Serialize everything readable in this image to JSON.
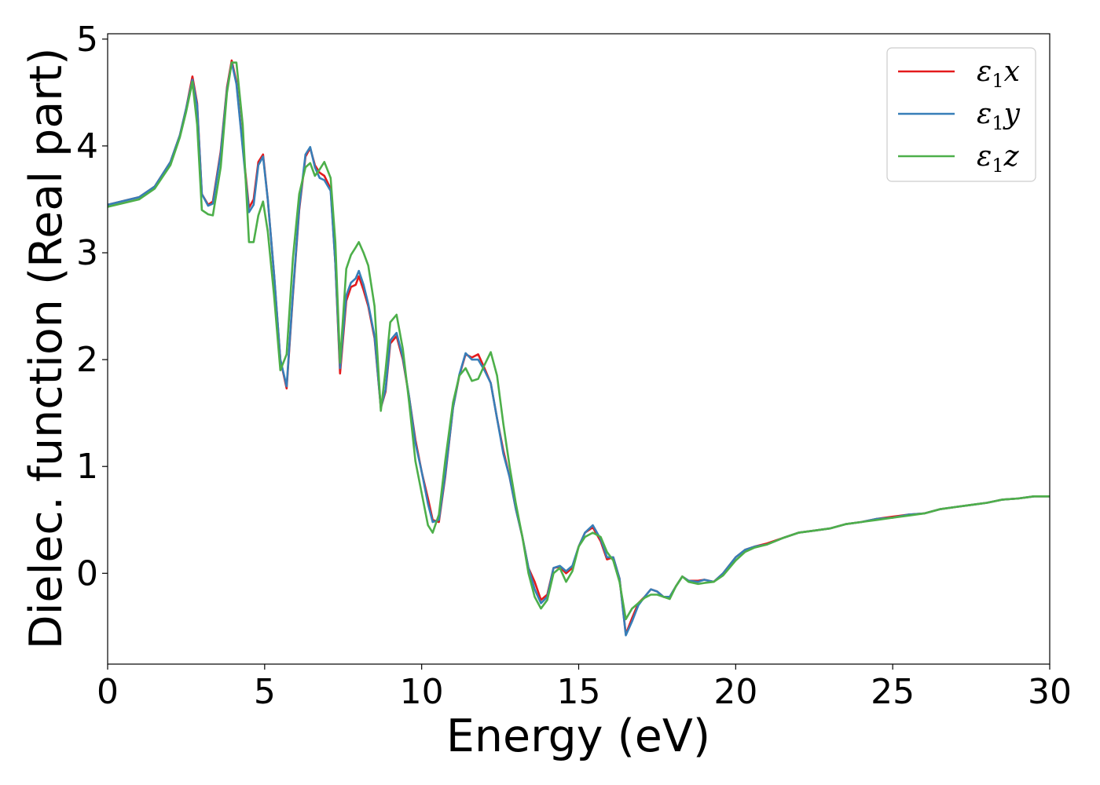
{
  "chart_data": {
    "type": "line",
    "xlabel": "Energy (eV)",
    "ylabel": "Dielec. function (Real part)",
    "xlim": [
      0,
      30
    ],
    "ylim": [
      -0.85,
      5.05
    ],
    "xticks": [
      0,
      5,
      10,
      15,
      20,
      25,
      30
    ],
    "yticks": [
      0,
      1,
      2,
      3,
      4,
      5
    ],
    "grid": false,
    "legend_position": "top-right",
    "series": [
      {
        "name": "ε1x",
        "legend": {
          "main": "ε",
          "sub": "1",
          "suffix": "x"
        },
        "color": "#e41a1c",
        "x": [
          0,
          1,
          1.5,
          2,
          2.3,
          2.5,
          2.7,
          2.85,
          3.0,
          3.2,
          3.35,
          3.6,
          3.8,
          3.95,
          4.1,
          4.3,
          4.5,
          4.65,
          4.8,
          4.95,
          5.1,
          5.3,
          5.5,
          5.7,
          5.9,
          6.1,
          6.3,
          6.45,
          6.6,
          6.75,
          6.9,
          7.1,
          7.25,
          7.4,
          7.6,
          7.75,
          7.9,
          8.0,
          8.15,
          8.3,
          8.5,
          8.7,
          8.85,
          9.0,
          9.2,
          9.4,
          9.6,
          9.8,
          10.0,
          10.2,
          10.35,
          10.55,
          10.75,
          11.0,
          11.2,
          11.4,
          11.6,
          11.8,
          12.0,
          12.2,
          12.4,
          12.6,
          12.8,
          13.0,
          13.2,
          13.4,
          13.6,
          13.8,
          14.0,
          14.2,
          14.4,
          14.6,
          14.8,
          15.0,
          15.2,
          15.45,
          15.7,
          15.9,
          16.1,
          16.3,
          16.5,
          16.7,
          16.9,
          17.1,
          17.3,
          17.5,
          17.7,
          17.9,
          18.1,
          18.3,
          18.5,
          18.8,
          19.0,
          19.3,
          19.6,
          20.0,
          20.3,
          20.6,
          21.0,
          21.5,
          22.0,
          22.5,
          23.0,
          23.5,
          24.0,
          24.5,
          25.0,
          25.5,
          26.0,
          26.5,
          27.0,
          27.5,
          28.0,
          28.5,
          29.0,
          29.5,
          30.0
        ],
        "y": [
          3.45,
          3.52,
          3.62,
          3.85,
          4.1,
          4.35,
          4.65,
          4.4,
          3.55,
          3.45,
          3.48,
          3.95,
          4.55,
          4.8,
          4.6,
          4.0,
          3.42,
          3.5,
          3.85,
          3.92,
          3.5,
          2.8,
          2.0,
          1.73,
          2.6,
          3.4,
          3.9,
          3.98,
          3.82,
          3.75,
          3.72,
          3.6,
          2.9,
          1.87,
          2.55,
          2.68,
          2.7,
          2.78,
          2.65,
          2.5,
          2.2,
          1.55,
          1.7,
          2.15,
          2.22,
          2.0,
          1.65,
          1.25,
          0.95,
          0.7,
          0.5,
          0.48,
          0.9,
          1.55,
          1.85,
          2.05,
          2.02,
          2.05,
          1.92,
          1.78,
          1.45,
          1.15,
          0.9,
          0.6,
          0.35,
          0.05,
          -0.08,
          -0.25,
          -0.2,
          0.05,
          0.06,
          0.0,
          0.05,
          0.25,
          0.38,
          0.43,
          0.3,
          0.13,
          0.15,
          -0.05,
          -0.57,
          -0.42,
          -0.28,
          -0.22,
          -0.15,
          -0.17,
          -0.22,
          -0.22,
          -0.12,
          -0.03,
          -0.07,
          -0.07,
          -0.06,
          -0.08,
          0.0,
          0.15,
          0.22,
          0.25,
          0.28,
          0.33,
          0.38,
          0.4,
          0.42,
          0.46,
          0.48,
          0.51,
          0.53,
          0.55,
          0.56,
          0.6,
          0.62,
          0.64,
          0.66,
          0.69,
          0.7,
          0.72,
          0.72
        ]
      },
      {
        "name": "ε1y",
        "legend": {
          "main": "ε",
          "sub": "1",
          "suffix": "y"
        },
        "color": "#377eb8",
        "x": [
          0,
          1,
          1.5,
          2,
          2.3,
          2.5,
          2.7,
          2.85,
          3.0,
          3.2,
          3.35,
          3.6,
          3.8,
          3.95,
          4.1,
          4.3,
          4.5,
          4.65,
          4.8,
          4.95,
          5.1,
          5.3,
          5.5,
          5.7,
          5.9,
          6.1,
          6.3,
          6.45,
          6.6,
          6.75,
          6.9,
          7.1,
          7.25,
          7.4,
          7.6,
          7.75,
          7.9,
          8.0,
          8.15,
          8.3,
          8.5,
          8.7,
          8.85,
          9.0,
          9.2,
          9.4,
          9.6,
          9.8,
          10.0,
          10.2,
          10.35,
          10.55,
          10.75,
          11.0,
          11.2,
          11.4,
          11.6,
          11.8,
          12.0,
          12.2,
          12.4,
          12.6,
          12.8,
          13.0,
          13.2,
          13.4,
          13.6,
          13.8,
          14.0,
          14.2,
          14.4,
          14.6,
          14.8,
          15.0,
          15.2,
          15.45,
          15.7,
          15.9,
          16.1,
          16.3,
          16.5,
          16.7,
          16.9,
          17.1,
          17.3,
          17.5,
          17.7,
          17.9,
          18.1,
          18.3,
          18.5,
          18.8,
          19.0,
          19.3,
          19.6,
          20.0,
          20.3,
          20.6,
          21.0,
          21.5,
          22.0,
          22.5,
          23.0,
          23.5,
          24.0,
          24.5,
          25.0,
          25.5,
          26.0,
          26.5,
          27.0,
          27.5,
          28.0,
          28.5,
          29.0,
          29.5,
          30.0
        ],
        "y": [
          3.45,
          3.52,
          3.62,
          3.85,
          4.1,
          4.35,
          4.62,
          4.38,
          3.55,
          3.44,
          3.46,
          3.93,
          4.53,
          4.78,
          4.58,
          3.98,
          3.38,
          3.45,
          3.82,
          3.9,
          3.5,
          2.8,
          2.0,
          1.75,
          2.62,
          3.42,
          3.92,
          3.99,
          3.8,
          3.7,
          3.68,
          3.58,
          2.9,
          1.92,
          2.6,
          2.72,
          2.76,
          2.83,
          2.7,
          2.52,
          2.22,
          1.55,
          1.72,
          2.18,
          2.25,
          2.02,
          1.65,
          1.22,
          0.95,
          0.65,
          0.48,
          0.5,
          0.92,
          1.55,
          1.86,
          2.06,
          2.0,
          2.0,
          1.9,
          1.78,
          1.45,
          1.12,
          0.9,
          0.6,
          0.35,
          0.05,
          -0.15,
          -0.28,
          -0.22,
          0.05,
          0.07,
          0.02,
          0.07,
          0.25,
          0.38,
          0.45,
          0.32,
          0.15,
          0.15,
          -0.05,
          -0.58,
          -0.45,
          -0.3,
          -0.22,
          -0.15,
          -0.17,
          -0.22,
          -0.22,
          -0.12,
          -0.03,
          -0.07,
          -0.08,
          -0.06,
          -0.08,
          0.0,
          0.15,
          0.22,
          0.25,
          0.27,
          0.33,
          0.38,
          0.4,
          0.42,
          0.46,
          0.48,
          0.51,
          0.52,
          0.55,
          0.56,
          0.6,
          0.62,
          0.64,
          0.66,
          0.69,
          0.7,
          0.72,
          0.72
        ]
      },
      {
        "name": "ε1z",
        "legend": {
          "main": "ε",
          "sub": "1",
          "suffix": "z"
        },
        "color": "#4daf4a",
        "x": [
          0,
          1,
          1.5,
          2,
          2.3,
          2.5,
          2.7,
          2.85,
          3.0,
          3.2,
          3.35,
          3.6,
          3.8,
          3.95,
          4.1,
          4.3,
          4.5,
          4.65,
          4.8,
          4.95,
          5.1,
          5.3,
          5.5,
          5.7,
          5.9,
          6.1,
          6.3,
          6.45,
          6.6,
          6.75,
          6.9,
          7.1,
          7.25,
          7.4,
          7.6,
          7.75,
          7.9,
          8.0,
          8.15,
          8.3,
          8.5,
          8.7,
          8.85,
          9.0,
          9.2,
          9.4,
          9.6,
          9.8,
          10.0,
          10.2,
          10.35,
          10.55,
          10.75,
          11.0,
          11.2,
          11.4,
          11.6,
          11.8,
          12.0,
          12.2,
          12.4,
          12.6,
          12.8,
          13.0,
          13.2,
          13.4,
          13.6,
          13.8,
          14.0,
          14.2,
          14.4,
          14.6,
          14.8,
          15.0,
          15.2,
          15.45,
          15.7,
          15.9,
          16.1,
          16.3,
          16.5,
          16.7,
          16.9,
          17.1,
          17.3,
          17.5,
          17.7,
          17.9,
          18.1,
          18.3,
          18.5,
          18.8,
          19.0,
          19.3,
          19.6,
          20.0,
          20.3,
          20.6,
          21.0,
          21.5,
          22.0,
          22.5,
          23.0,
          23.5,
          24.0,
          24.5,
          25.0,
          25.5,
          26.0,
          26.5,
          27.0,
          27.5,
          28.0,
          28.5,
          29.0,
          29.5,
          30.0
        ],
        "y": [
          3.43,
          3.5,
          3.6,
          3.82,
          4.08,
          4.32,
          4.6,
          4.2,
          3.4,
          3.36,
          3.35,
          3.8,
          4.5,
          4.78,
          4.78,
          4.2,
          3.1,
          3.1,
          3.35,
          3.48,
          3.2,
          2.6,
          1.9,
          2.05,
          2.95,
          3.55,
          3.8,
          3.84,
          3.72,
          3.78,
          3.85,
          3.7,
          3.1,
          1.97,
          2.85,
          2.98,
          3.05,
          3.1,
          3.0,
          2.88,
          2.5,
          1.52,
          1.9,
          2.35,
          2.42,
          2.1,
          1.6,
          1.05,
          0.75,
          0.45,
          0.38,
          0.55,
          1.05,
          1.6,
          1.85,
          1.92,
          1.8,
          1.82,
          1.95,
          2.07,
          1.85,
          1.4,
          1.0,
          0.65,
          0.35,
          0.0,
          -0.22,
          -0.33,
          -0.25,
          0.0,
          0.05,
          -0.08,
          0.02,
          0.25,
          0.34,
          0.38,
          0.34,
          0.2,
          0.12,
          -0.08,
          -0.43,
          -0.33,
          -0.28,
          -0.23,
          -0.2,
          -0.2,
          -0.22,
          -0.24,
          -0.12,
          -0.03,
          -0.08,
          -0.1,
          -0.09,
          -0.08,
          -0.02,
          0.12,
          0.2,
          0.24,
          0.27,
          0.33,
          0.38,
          0.4,
          0.42,
          0.46,
          0.48,
          0.5,
          0.52,
          0.54,
          0.56,
          0.6,
          0.62,
          0.64,
          0.66,
          0.69,
          0.7,
          0.72,
          0.72
        ]
      }
    ]
  }
}
